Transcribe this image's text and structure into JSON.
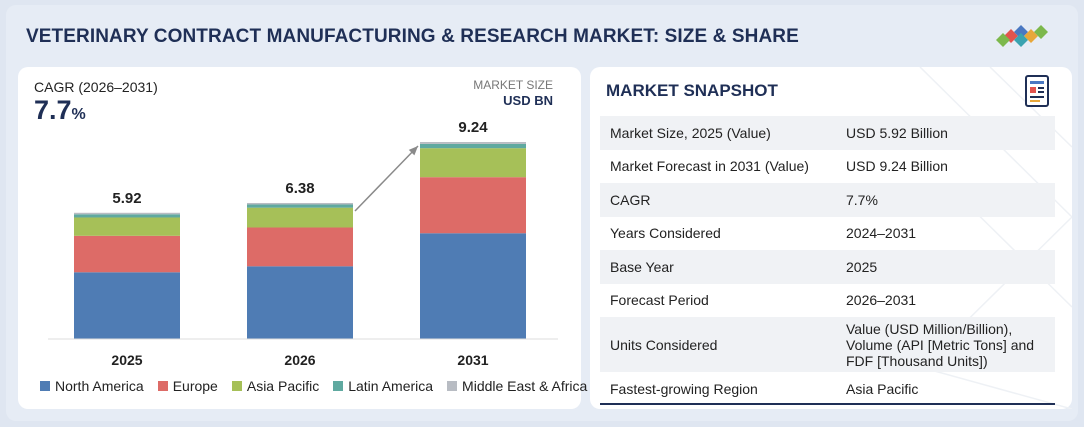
{
  "title": "VETERINARY CONTRACT MANUFACTURING & RESEARCH MARKET: SIZE & SHARE",
  "cagr": {
    "label": "CAGR (2026–2031)",
    "value": "7.7",
    "unit": "%"
  },
  "market_size": {
    "label": "MARKET SIZE",
    "unit": "USD BN"
  },
  "colors": {
    "North America": "#4f7cb4",
    "Europe": "#dd6b67",
    "Asia Pacific": "#a6c058",
    "Latin America": "#5fa9a0",
    "Middle East & Africa": "#b8bcc3",
    "title": "#1f2f56"
  },
  "chart_data": {
    "type": "bar",
    "stacked": true,
    "title": "",
    "xlabel": "",
    "ylabel": "USD BN",
    "categories": [
      "2025",
      "2026",
      "2031"
    ],
    "totals": [
      5.92,
      6.38,
      9.24
    ],
    "ylim": [
      0,
      9.24
    ],
    "series": [
      {
        "name": "North America",
        "values": [
          3.13,
          3.41,
          4.96
        ]
      },
      {
        "name": "Europe",
        "values": [
          1.71,
          1.82,
          2.63
        ]
      },
      {
        "name": "Asia Pacific",
        "values": [
          0.86,
          0.93,
          1.36
        ]
      },
      {
        "name": "Latin America",
        "values": [
          0.15,
          0.15,
          0.2
        ]
      },
      {
        "name": "Middle East & Africa",
        "values": [
          0.07,
          0.07,
          0.09
        ]
      }
    ],
    "legend_position": "bottom"
  },
  "snapshot": {
    "title": "MARKET SNAPSHOT",
    "rows": [
      {
        "key": "Market Size, 2025 (Value)",
        "value": "USD 5.92 Billion"
      },
      {
        "key": "Market Forecast in 2031 (Value)",
        "value": "USD 9.24 Billion"
      },
      {
        "key": "CAGR",
        "value": "7.7%"
      },
      {
        "key": "Years Considered",
        "value": "2024–2031"
      },
      {
        "key": "Base Year",
        "value": "2025"
      },
      {
        "key": "Forecast Period",
        "value": "2026–2031"
      },
      {
        "key": "Units Considered",
        "value": "Value (USD Million/Billion), Volume (API [Metric Tons] and FDF [Thousand Units])"
      },
      {
        "key": "Fastest-growing Region",
        "value": "Asia Pacific"
      }
    ]
  }
}
